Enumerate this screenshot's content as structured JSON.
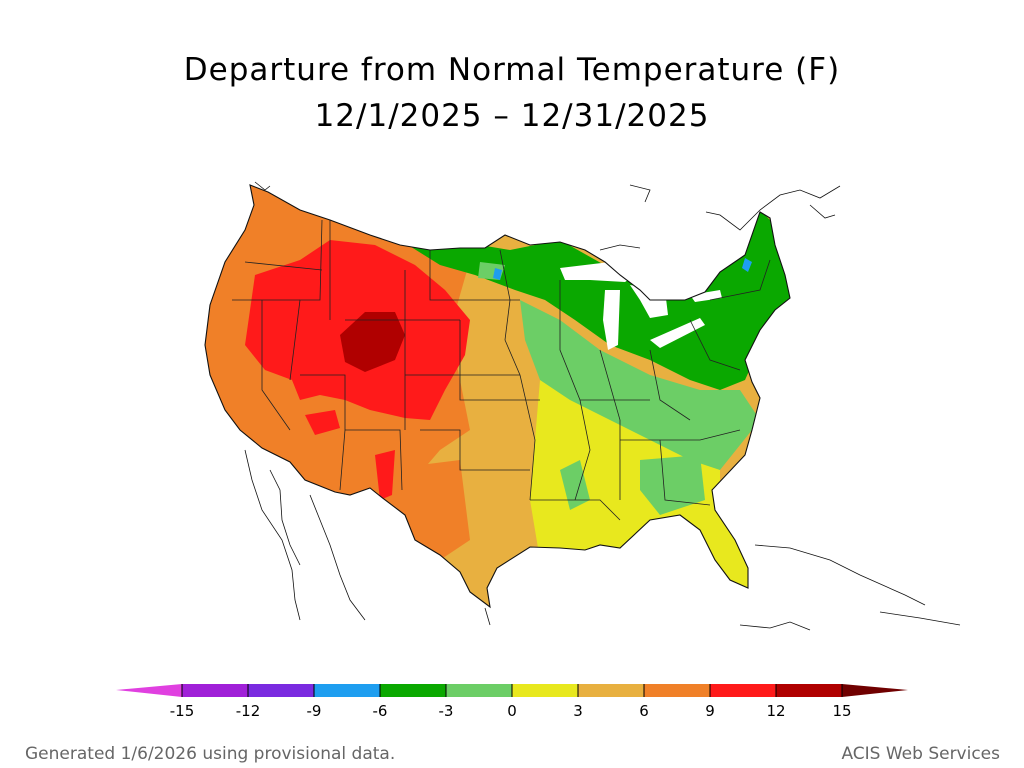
{
  "title": "Departure from Normal Temperature (F)",
  "date_range": "12/1/2025 – 12/31/2025",
  "legend": {
    "ticks": [
      "-15",
      "-12",
      "-9",
      "-6",
      "-3",
      "0",
      "3",
      "6",
      "9",
      "12",
      "15"
    ],
    "colors": [
      "#e040e0",
      "#a020d8",
      "#7a2ae0",
      "#1e9ef0",
      "#0aa800",
      "#6cce66",
      "#e8e81e",
      "#e8b040",
      "#f08028",
      "#ff1a1a",
      "#b00000",
      "#700000"
    ]
  },
  "footer": {
    "left": "Generated 1/6/2026 using provisional data.",
    "right": "ACIS Web Services"
  },
  "icons": {
    "north_arrow": "none"
  }
}
